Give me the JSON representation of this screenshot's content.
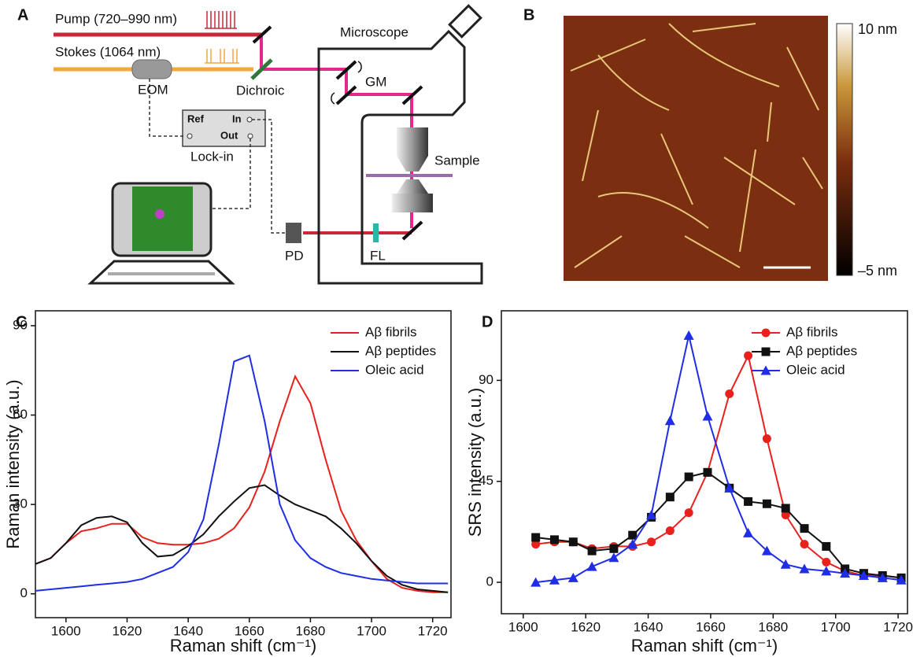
{
  "panels": {
    "A": {
      "label": "A",
      "pump": "Pump (720–990 nm)",
      "stokes": "Stokes (1064 nm)",
      "eom": "EOM",
      "dichroic": "Dichroic",
      "microscope": "Microscope",
      "gm": "GM",
      "ref": "Ref",
      "in": "In",
      "out": "Out",
      "lockin": "Lock-in",
      "sample": "Sample",
      "pd": "PD",
      "fl": "FL"
    },
    "B": {
      "label": "B",
      "colorbar_max": "10 nm",
      "colorbar_min": "–5 nm"
    }
  },
  "chart_data": [
    {
      "type": "line",
      "panel_label": "C",
      "xlabel": "Raman shift (cm⁻¹)",
      "ylabel": "Raman intensity (a.u.)",
      "x": [
        1590,
        1595,
        1600,
        1605,
        1610,
        1615,
        1620,
        1625,
        1630,
        1635,
        1640,
        1645,
        1650,
        1655,
        1660,
        1665,
        1670,
        1675,
        1680,
        1685,
        1690,
        1695,
        1700,
        1705,
        1710,
        1715,
        1720,
        1725
      ],
      "series": [
        {
          "name": "Aβ fibrils",
          "color": "#e8211d",
          "values": [
            10,
            12,
            17,
            21,
            22,
            23.5,
            23.5,
            19,
            17,
            16.5,
            16.5,
            17,
            18.5,
            22,
            29,
            41,
            58,
            73,
            64,
            45,
            28,
            18,
            11,
            5,
            2,
            1,
            0.5,
            0.5
          ]
        },
        {
          "name": "Aβ peptides",
          "color": "#111111",
          "values": [
            10,
            12,
            17,
            23,
            25.5,
            26,
            24,
            17,
            12.5,
            13,
            16,
            20,
            26,
            31,
            35.5,
            36.5,
            33,
            30,
            28,
            26,
            22,
            17,
            11,
            6,
            3,
            1.5,
            1,
            0.5
          ]
        },
        {
          "name": "Oleic acid",
          "color": "#1f2ee6",
          "values": [
            1,
            1.5,
            2,
            2.5,
            3,
            3.5,
            4,
            5,
            7,
            9,
            14,
            25,
            50,
            78,
            80,
            58,
            30,
            18,
            12,
            9,
            7,
            6,
            5,
            4.5,
            4,
            3.5,
            3.5,
            3.5
          ]
        }
      ],
      "xlim": [
        1590,
        1726
      ],
      "ylim": [
        -8,
        95
      ],
      "xticks": [
        1600,
        1620,
        1640,
        1660,
        1680,
        1700,
        1720
      ],
      "yticks": [
        0,
        30,
        60,
        90
      ]
    },
    {
      "type": "line",
      "panel_label": "D",
      "xlabel": "Raman shift (cm⁻¹)",
      "ylabel": "SRS intensity (a.u.)",
      "x": [
        1604,
        1610,
        1616,
        1622,
        1629,
        1635,
        1641,
        1647,
        1653,
        1659,
        1666,
        1672,
        1678,
        1684,
        1690,
        1697,
        1703,
        1709,
        1715,
        1721
      ],
      "series": [
        {
          "name": "Aβ fibrils",
          "color": "#e8211d",
          "marker": "circle",
          "values": [
            17,
            18,
            18,
            15,
            16,
            16,
            18,
            23,
            31,
            49,
            84,
            101,
            64,
            30,
            17,
            9,
            5,
            3,
            3,
            2
          ]
        },
        {
          "name": "Aβ peptides",
          "color": "#111111",
          "marker": "square",
          "values": [
            20,
            19,
            18,
            14,
            15,
            21,
            29,
            38,
            47,
            49,
            42,
            36,
            35,
            33,
            24,
            16,
            6,
            4,
            3,
            2
          ]
        },
        {
          "name": "Oleic acid",
          "color": "#1f2ee6",
          "marker": "triangle",
          "values": [
            0,
            1,
            2,
            7,
            11,
            17,
            30,
            72,
            110,
            74,
            42,
            22,
            14,
            8,
            6,
            5,
            4,
            3,
            2,
            1
          ]
        }
      ],
      "xlim": [
        1593,
        1723
      ],
      "ylim": [
        -14,
        121
      ],
      "xticks": [
        1600,
        1620,
        1640,
        1660,
        1680,
        1700,
        1720
      ],
      "yticks": [
        0,
        45,
        90
      ]
    }
  ]
}
